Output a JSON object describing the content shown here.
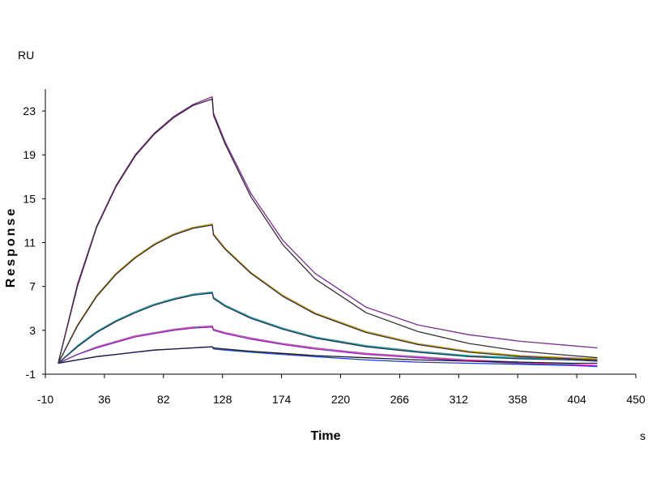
{
  "chart_data": {
    "type": "line",
    "title": "",
    "xlabel": "Time",
    "x_unit": "s",
    "ylabel": "Response",
    "y_unit": "RU",
    "xlim": [
      -10,
      450
    ],
    "ylim": [
      -1,
      25
    ],
    "x_ticks": [
      -10,
      36,
      82,
      128,
      174,
      220,
      266,
      312,
      358,
      404,
      450
    ],
    "y_ticks": [
      -1,
      3,
      7,
      11,
      15,
      19,
      23
    ],
    "grid": false,
    "legend": "none",
    "x": [
      0,
      15,
      30,
      45,
      60,
      75,
      90,
      105,
      120,
      121,
      130,
      150,
      175,
      200,
      240,
      280,
      320,
      360,
      400,
      420
    ],
    "series": [
      {
        "color": "#7b2f8e",
        "values": [
          0,
          7.2,
          12.5,
          16.2,
          19.0,
          21.0,
          22.5,
          23.6,
          24.3,
          22.8,
          20.2,
          15.5,
          11.2,
          8.2,
          5.1,
          3.5,
          2.6,
          2.0,
          1.6,
          1.4
        ]
      },
      {
        "color": "#3a2a3a",
        "values": [
          0,
          7.0,
          12.4,
          16.1,
          18.9,
          20.9,
          22.4,
          23.5,
          24.1,
          22.6,
          20.0,
          15.2,
          10.8,
          7.7,
          4.6,
          2.9,
          1.8,
          1.1,
          0.7,
          0.5
        ]
      },
      {
        "color": "#c8a020",
        "values": [
          0,
          3.5,
          6.2,
          8.2,
          9.7,
          10.9,
          11.8,
          12.4,
          12.7,
          11.8,
          10.5,
          8.3,
          6.2,
          4.6,
          2.9,
          1.8,
          1.1,
          0.7,
          0.5,
          0.4
        ]
      },
      {
        "color": "#2a2a40",
        "values": [
          0,
          3.4,
          6.1,
          8.1,
          9.6,
          10.8,
          11.7,
          12.3,
          12.6,
          11.7,
          10.4,
          8.2,
          6.1,
          4.5,
          2.8,
          1.7,
          1.0,
          0.6,
          0.4,
          0.3
        ]
      },
      {
        "color": "#20a0a8",
        "values": [
          0,
          1.6,
          2.9,
          3.9,
          4.7,
          5.4,
          5.9,
          6.3,
          6.5,
          6.0,
          5.3,
          4.2,
          3.2,
          2.4,
          1.6,
          1.1,
          0.7,
          0.5,
          0.3,
          0.2
        ]
      },
      {
        "color": "#303048",
        "values": [
          0,
          1.5,
          2.8,
          3.8,
          4.6,
          5.3,
          5.8,
          6.2,
          6.4,
          5.9,
          5.2,
          4.1,
          3.1,
          2.3,
          1.5,
          1.0,
          0.6,
          0.4,
          0.3,
          0.2
        ]
      },
      {
        "color": "#e040c8",
        "values": [
          0,
          0.8,
          1.5,
          2.0,
          2.5,
          2.8,
          3.1,
          3.3,
          3.4,
          3.1,
          2.8,
          2.3,
          1.8,
          1.4,
          0.9,
          0.6,
          0.3,
          0.1,
          -0.1,
          -0.2
        ]
      },
      {
        "color": "#6a3aa0",
        "values": [
          0,
          0.8,
          1.4,
          1.9,
          2.4,
          2.7,
          3.0,
          3.2,
          3.3,
          3.0,
          2.7,
          2.2,
          1.7,
          1.3,
          0.8,
          0.5,
          0.2,
          0.0,
          -0.2,
          -0.3
        ]
      },
      {
        "color": "#2040c0",
        "values": [
          0,
          0.3,
          0.6,
          0.8,
          1.0,
          1.2,
          1.3,
          1.4,
          1.5,
          1.3,
          1.2,
          1.0,
          0.8,
          0.6,
          0.3,
          0.1,
          0.0,
          -0.1,
          -0.2,
          -0.3
        ]
      },
      {
        "color": "#1a1a3a",
        "values": [
          0,
          0.3,
          0.6,
          0.8,
          1.0,
          1.2,
          1.3,
          1.4,
          1.5,
          1.4,
          1.3,
          1.1,
          0.9,
          0.7,
          0.5,
          0.3,
          0.2,
          0.1,
          0.0,
          0.0
        ]
      }
    ]
  }
}
